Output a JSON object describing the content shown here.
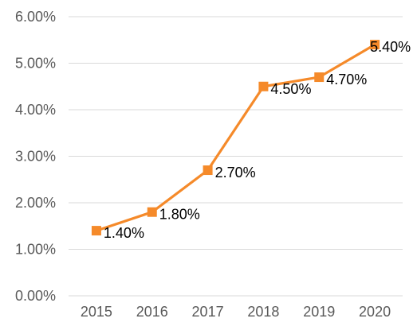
{
  "chart_data": {
    "type": "line",
    "categories": [
      "2015",
      "2016",
      "2017",
      "2018",
      "2019",
      "2020"
    ],
    "series": [
      {
        "values": [
          1.4,
          1.8,
          2.7,
          4.5,
          4.7,
          5.4
        ],
        "labels": [
          "1.40%",
          "1.80%",
          "2.70%",
          "4.50%",
          "4.70%",
          "5.40%"
        ],
        "color": "#F58A2A",
        "marker": "square"
      }
    ],
    "ylim": [
      0,
      6
    ],
    "yticks": [
      0,
      1,
      2,
      3,
      4,
      5,
      6
    ],
    "ytick_labels": [
      "0.00%",
      "1.00%",
      "2.00%",
      "3.00%",
      "4.00%",
      "5.00%",
      "6.00%"
    ],
    "grid": true,
    "gridline_color": "#D9D9D9",
    "axis_text_color": "#595959",
    "legend": "none",
    "title": "",
    "xlabel": "",
    "ylabel": ""
  }
}
